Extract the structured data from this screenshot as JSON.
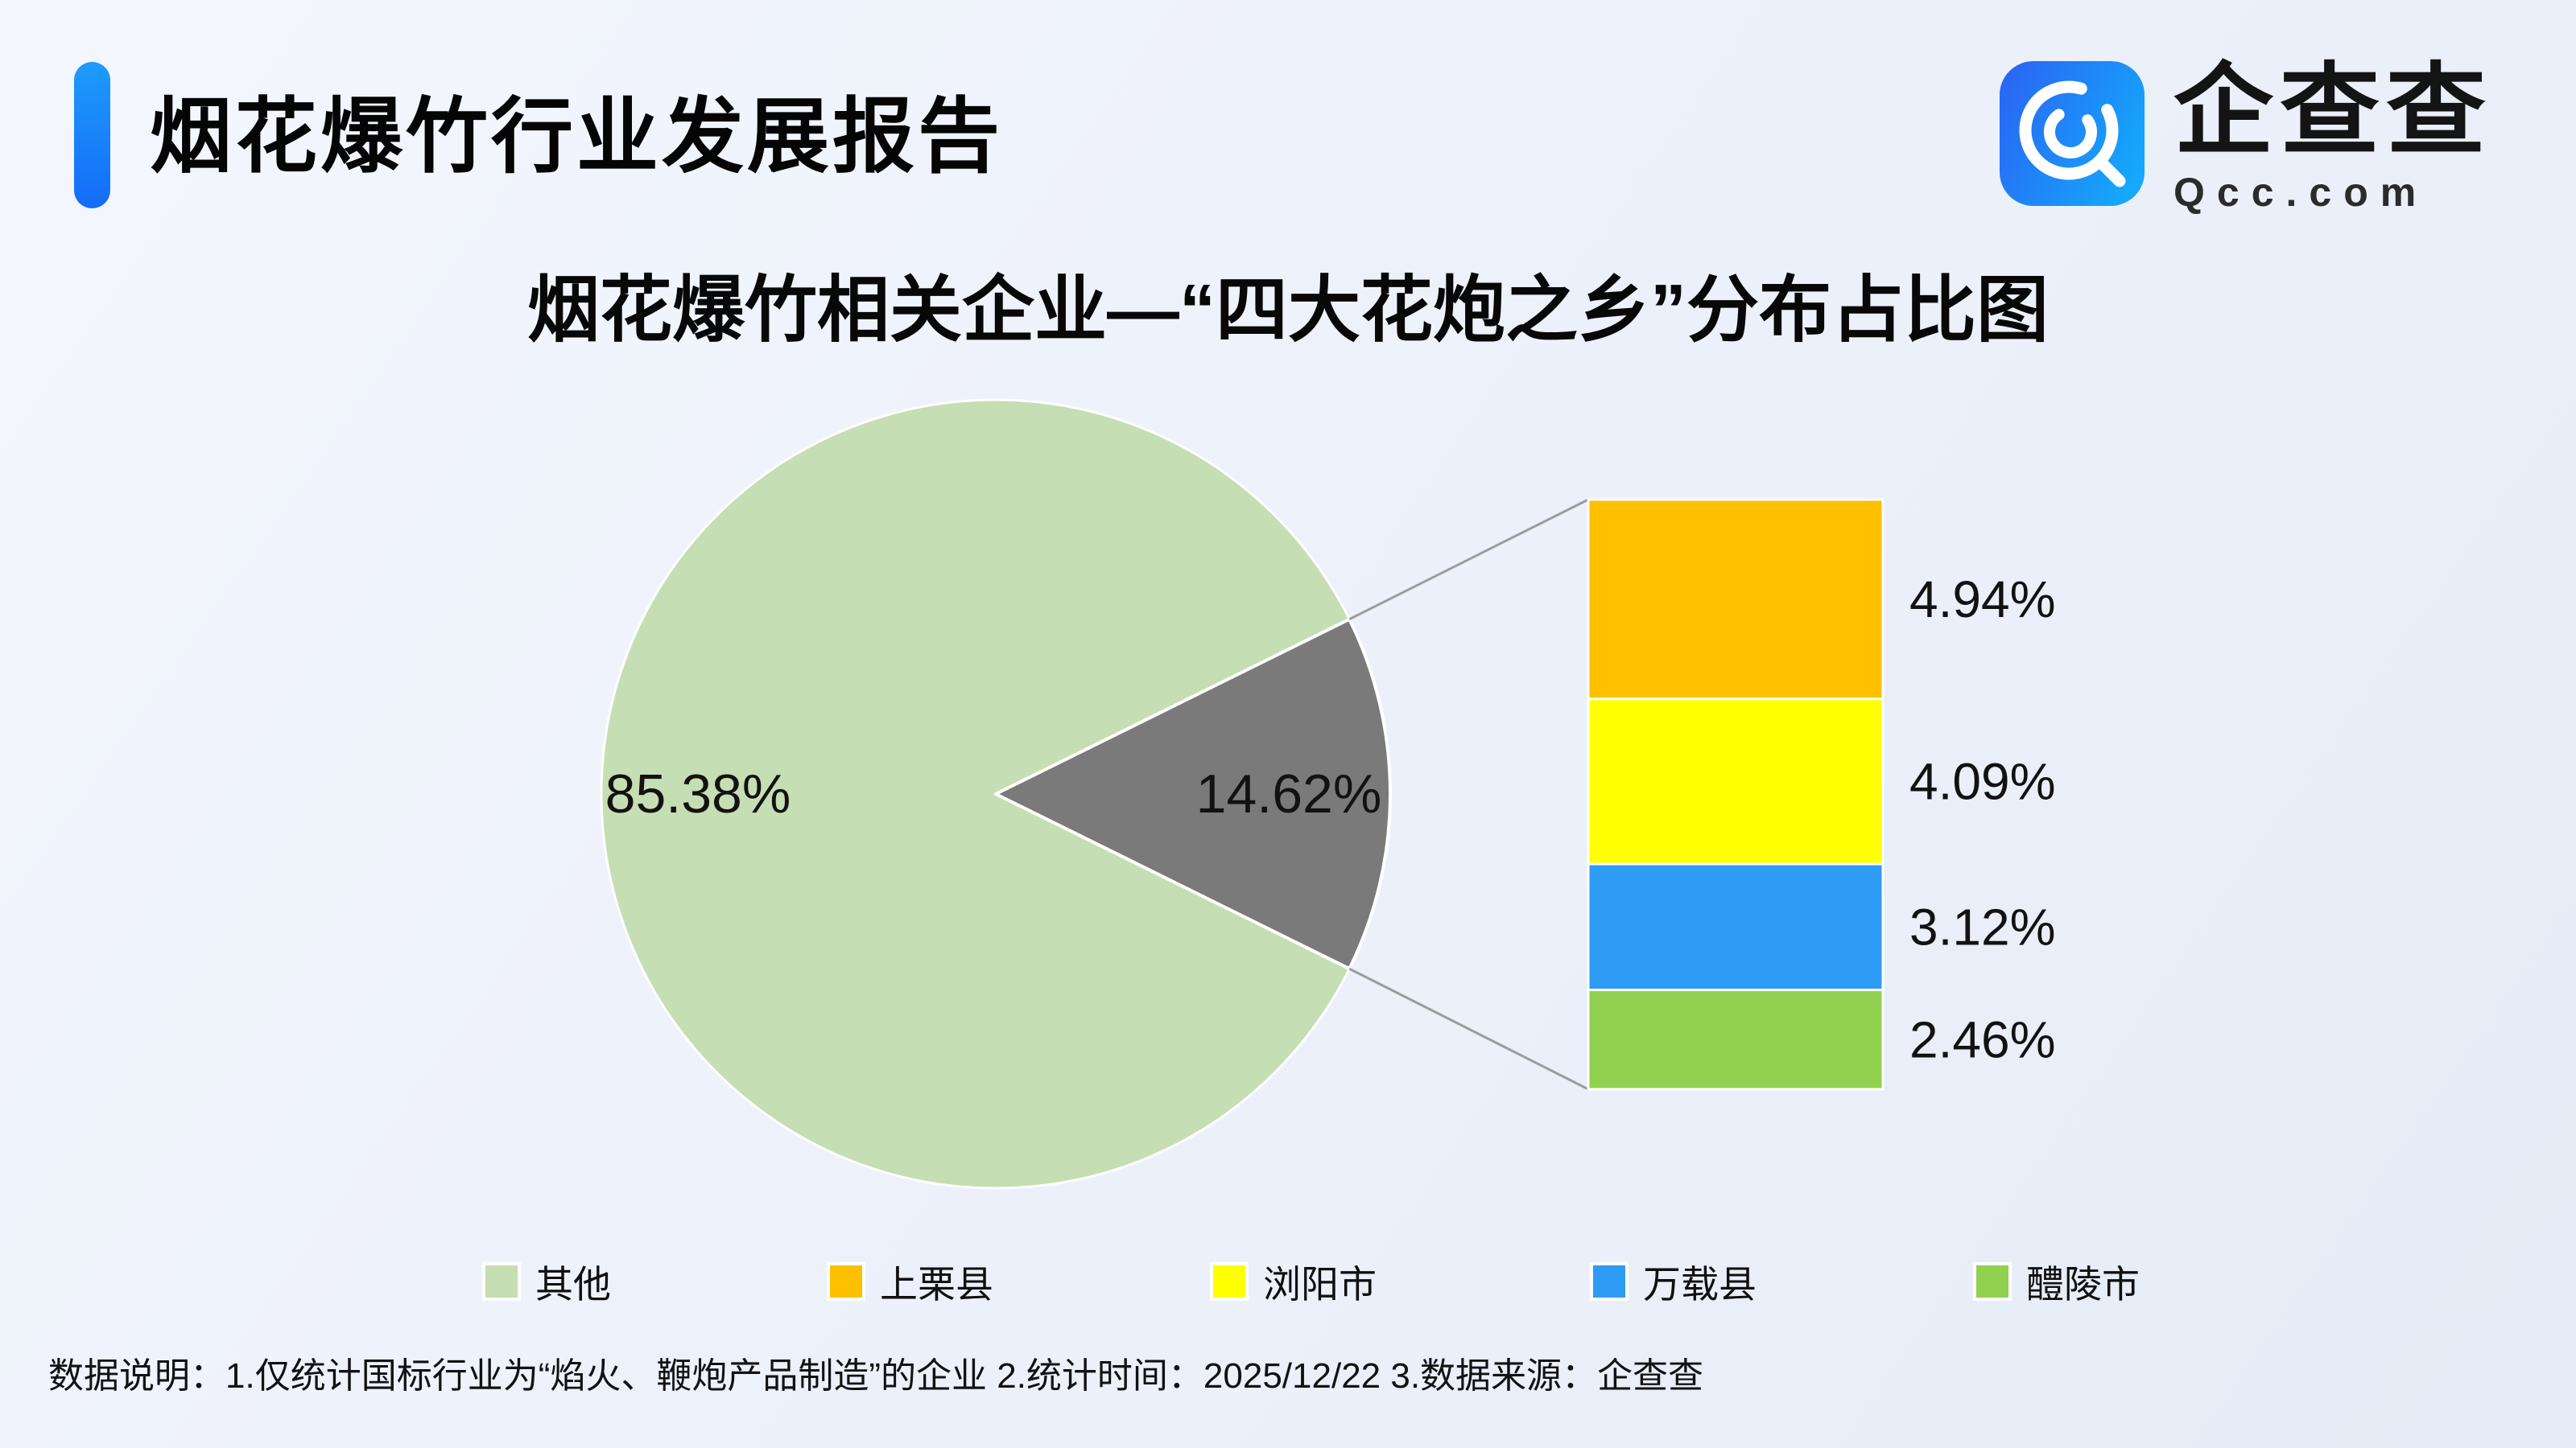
{
  "header": {
    "title": "烟花爆竹行业发展报告",
    "accent_color_top": "#1e9bfc",
    "accent_color_bottom": "#146cf7"
  },
  "logo": {
    "brand": "企查查",
    "domain": "Qcc.com",
    "tile_color_from": "#2b62f3",
    "tile_color_to": "#14a9fb"
  },
  "chart_data": {
    "type": "pie",
    "title": "烟花爆竹相关企业—“四大花炮之乡”分布占比图",
    "unit": "%",
    "legend_position": "bottom",
    "slices": [
      {
        "label": "其他",
        "value": 85.38,
        "display": "85.38%",
        "color": "#c6deb3"
      },
      {
        "label": "四大花炮之乡",
        "value": 14.62,
        "display": "14.62%",
        "color": "#7a7a7a"
      }
    ],
    "breakout_segments": [
      {
        "label": "上栗县",
        "value": 4.94,
        "display": "4.94%",
        "color": "#ffc000"
      },
      {
        "label": "浏阳市",
        "value": 4.09,
        "display": "4.09%",
        "color": "#ffff00"
      },
      {
        "label": "万载县",
        "value": 3.12,
        "display": "3.12%",
        "color": "#2e9bf5"
      },
      {
        "label": "醴陵市",
        "value": 2.46,
        "display": "2.46%",
        "color": "#92d050"
      }
    ]
  },
  "legend": {
    "items": [
      {
        "label": "其他",
        "color": "#c6deb3"
      },
      {
        "label": "上栗县",
        "color": "#ffc000"
      },
      {
        "label": "浏阳市",
        "color": "#ffff00"
      },
      {
        "label": "万载县",
        "color": "#2e9bf5"
      },
      {
        "label": "醴陵市",
        "color": "#92d050"
      }
    ]
  },
  "footer": {
    "text": "数据说明：1.仅统计国标行业为“焰火、鞭炮产品制造”的企业  2.统计时间：2025/12/22  3.数据来源：企查查"
  }
}
